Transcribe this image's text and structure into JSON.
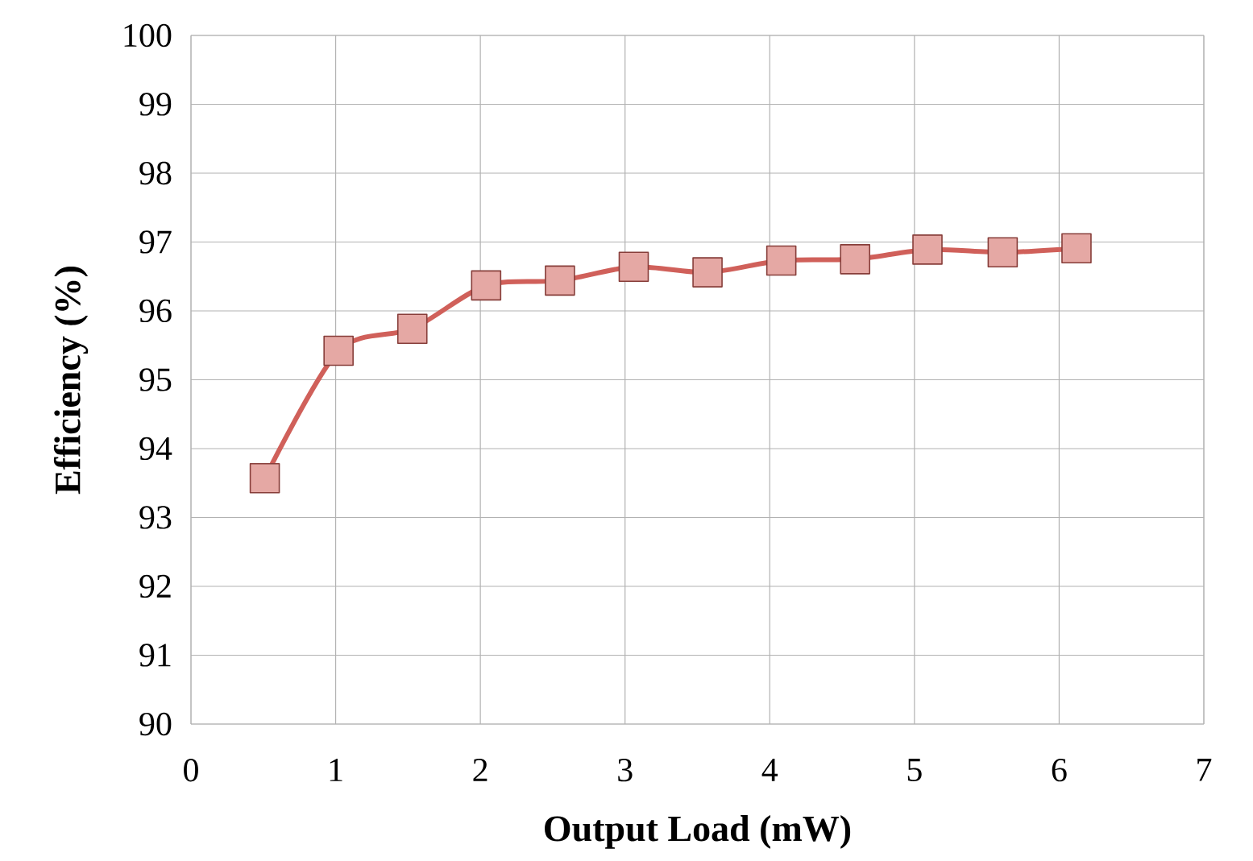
{
  "chart_data": {
    "type": "line",
    "xlabel": "Output Load (mW)",
    "ylabel": "Efficiency (%)",
    "x": [
      0.51,
      1.02,
      1.53,
      2.04,
      2.55,
      3.06,
      3.57,
      4.08,
      4.59,
      5.09,
      5.61,
      6.12
    ],
    "series": [
      {
        "color": "#d0605a",
        "values": [
          93.57,
          95.42,
          95.74,
          96.37,
          96.44,
          96.64,
          96.56,
          96.73,
          96.75,
          96.89,
          96.85,
          96.91
        ]
      }
    ],
    "xlim": [
      0,
      7
    ],
    "ylim": [
      90,
      100
    ],
    "xticks": [
      0,
      1,
      2,
      3,
      4,
      5,
      6,
      7
    ],
    "yticks": [
      90,
      91,
      92,
      93,
      94,
      95,
      96,
      97,
      98,
      99,
      100
    ],
    "grid": true,
    "marker": "square",
    "line_style": "solid"
  }
}
